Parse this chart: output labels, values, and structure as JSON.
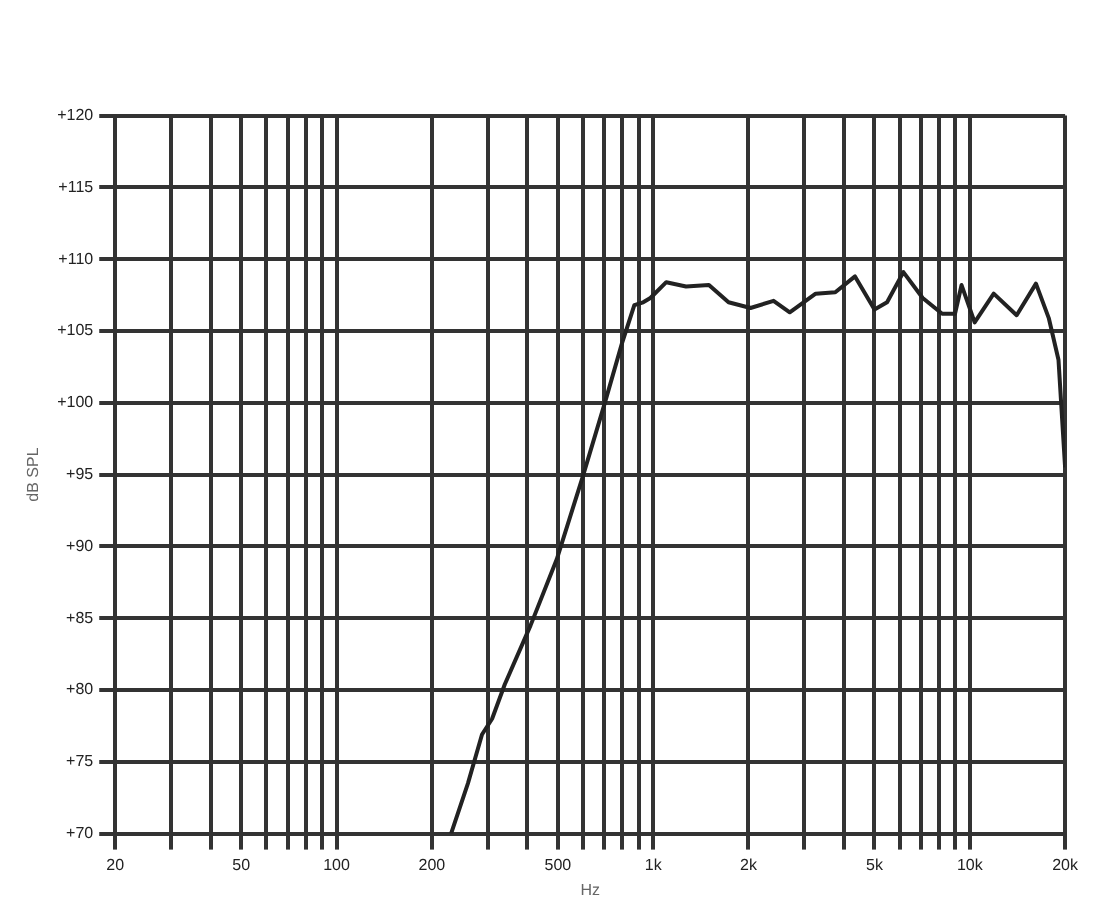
{
  "chart_data": {
    "type": "line",
    "xlabel": "Hz",
    "ylabel": "dB SPL",
    "log": "x",
    "grid": true,
    "legend": false,
    "marker": "none",
    "line_style": "solid",
    "xlim": [
      20,
      20000
    ],
    "ylim": [
      70,
      120
    ],
    "xticks": [
      20,
      {
        "value": 30,
        "label": null
      },
      {
        "value": 40,
        "label": null
      },
      50,
      {
        "value": 60,
        "label": null
      },
      {
        "value": 70,
        "label": null
      },
      {
        "value": 80,
        "label": null
      },
      {
        "value": 90,
        "label": null
      },
      100,
      200,
      {
        "value": 300,
        "label": null
      },
      {
        "value": 400,
        "label": null
      },
      500,
      {
        "value": 600,
        "label": null
      },
      {
        "value": 700,
        "label": null
      },
      {
        "value": 800,
        "label": null
      },
      {
        "value": 900,
        "label": null
      },
      {
        "value": 1000,
        "label": "1k"
      },
      {
        "value": 2000,
        "label": "2k"
      },
      {
        "value": 3000,
        "label": null
      },
      {
        "value": 4000,
        "label": null
      },
      {
        "value": 5000,
        "label": "5k"
      },
      {
        "value": 6000,
        "label": null
      },
      {
        "value": 7000,
        "label": null
      },
      {
        "value": 8000,
        "label": null
      },
      {
        "value": 9000,
        "label": null
      },
      {
        "value": 10000,
        "label": "10k"
      },
      {
        "value": 20000,
        "label": "20k"
      }
    ],
    "yticks": [
      {
        "value": 70,
        "label": "+70"
      },
      {
        "value": 75,
        "label": "+75"
      },
      {
        "value": 80,
        "label": "+80"
      },
      {
        "value": 85,
        "label": "+85"
      },
      {
        "value": 90,
        "label": "+90"
      },
      {
        "value": 95,
        "label": "+95"
      },
      {
        "value": 100,
        "label": "+100"
      },
      {
        "value": 105,
        "label": "+105"
      },
      {
        "value": 110,
        "label": "+110"
      },
      {
        "value": 115,
        "label": "+115"
      },
      {
        "value": 120,
        "label": "+120"
      }
    ],
    "series": [
      {
        "color": "#222222",
        "x": [
          230,
          260,
          288,
          310,
          340,
          410,
          496,
          600,
          706,
          796,
          872,
          930,
          980,
          1100,
          1270,
          1500,
          1730,
          2030,
          2400,
          2700,
          3260,
          3760,
          4340,
          5000,
          5480,
          6170,
          7100,
          8180,
          8980,
          9420,
          10360,
          11900,
          14060,
          16180,
          17760,
          19060,
          20000
        ],
        "values": [
          70,
          73.5,
          76.9,
          78,
          80.4,
          84.5,
          89.1,
          94.9,
          100.1,
          104.1,
          106.8,
          107.0,
          107.3,
          108.4,
          108.1,
          108.2,
          107.0,
          106.6,
          107.1,
          106.3,
          107.6,
          107.7,
          108.8,
          106.5,
          107.0,
          109.1,
          107.3,
          106.2,
          106.2,
          108.2,
          105.6,
          107.6,
          106.1,
          108.3,
          105.9,
          103.0,
          95.5
        ]
      }
    ]
  }
}
